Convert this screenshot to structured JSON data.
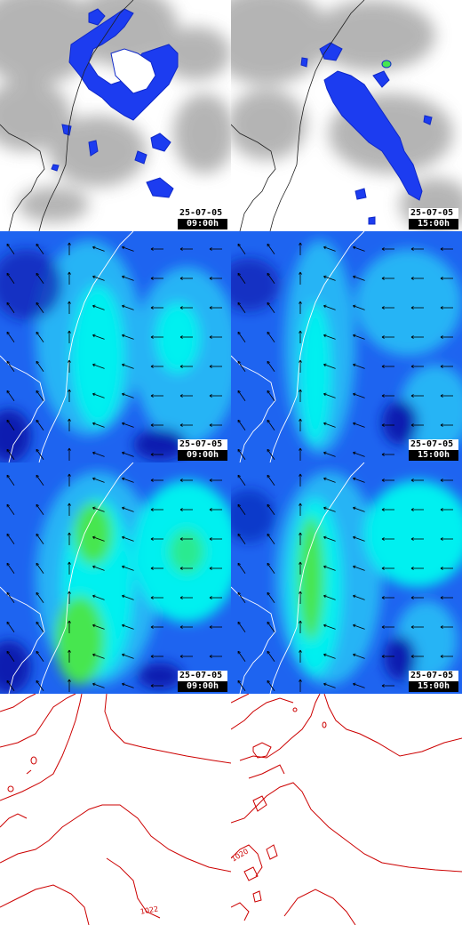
{
  "panels": [
    {
      "row": "precip",
      "date": "25-07-05",
      "time": "09:00h"
    },
    {
      "row": "precip",
      "date": "25-07-05",
      "time": "15:00h"
    },
    {
      "row": "wind-a",
      "date": "25-07-05",
      "time": "09:00h"
    },
    {
      "row": "wind-a",
      "date": "25-07-05",
      "time": "15:00h"
    },
    {
      "row": "wind-b",
      "date": "25-07-05",
      "time": "09:00h"
    },
    {
      "row": "wind-b",
      "date": "25-07-05",
      "time": "15:00h"
    },
    {
      "row": "pressure"
    },
    {
      "row": "pressure"
    }
  ],
  "isobar_labels": [
    "1022",
    "1020"
  ],
  "colors": {
    "precip": "#1c3cf0",
    "terrain": "#a8a8a8",
    "wind_deep": "#0a1eb0",
    "wind_mid": "#1e64f0",
    "wind_light": "#28b4f5",
    "wind_cyan": "#00f0f0",
    "wind_green": "#46e650",
    "isobar": "#cc0000",
    "coast": "#ffffff"
  }
}
